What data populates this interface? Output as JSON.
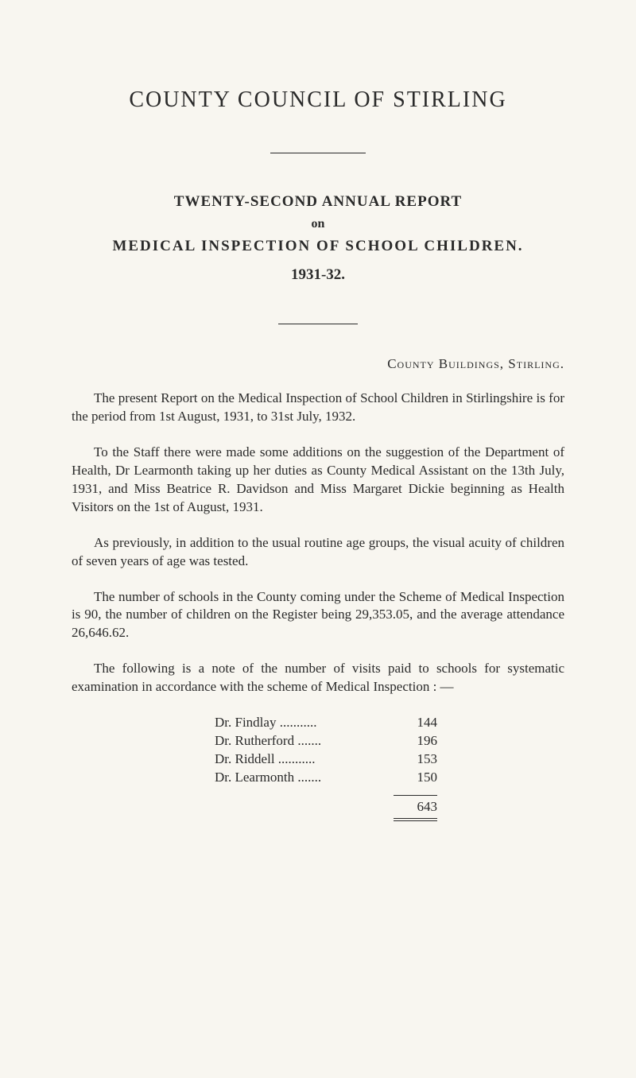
{
  "title": "COUNTY COUNCIL OF STIRLING",
  "sub_heading": "TWENTY-SECOND ANNUAL REPORT",
  "on": "on",
  "inspection_heading": "MEDICAL INSPECTION OF SCHOOL CHILDREN.",
  "year": "1931-32.",
  "location": "County Buildings, Stirling.",
  "para1": "The present Report on the Medical Inspection of School Children in Stirlingshire is for the period from 1st August, 1931, to 31st July, 1932.",
  "para2": "To the Staff there were made some additions on the suggestion of the Department of Health, Dr Learmonth taking up her duties as County Medical Assistant on the 13th July, 1931, and Miss Beatrice R. Davidson and Miss Margaret Dickie beginning as Health Visitors on the 1st of August, 1931.",
  "para3": "As previously, in addition to the usual routine age groups, the visual acuity of children of seven years of age was tested.",
  "para4": "The number of schools in the County coming under the Scheme of Medical Inspection is 90, the number of children on the Register being 29,353.05, and the average attendance 26,646.62.",
  "para5": "The following is a note of the number of visits paid to schools for systematic examination in accordance with the scheme of Medical Inspection : —",
  "visits": [
    {
      "name": "Dr. Findlay ...........",
      "count": "144"
    },
    {
      "name": "Dr. Rutherford .......",
      "count": "196"
    },
    {
      "name": "Dr. Riddell ...........",
      "count": "153"
    },
    {
      "name": "Dr. Learmonth .......",
      "count": "150"
    }
  ],
  "total": "643",
  "colors": {
    "background": "#f8f6f0",
    "text": "#2a2a2a"
  }
}
